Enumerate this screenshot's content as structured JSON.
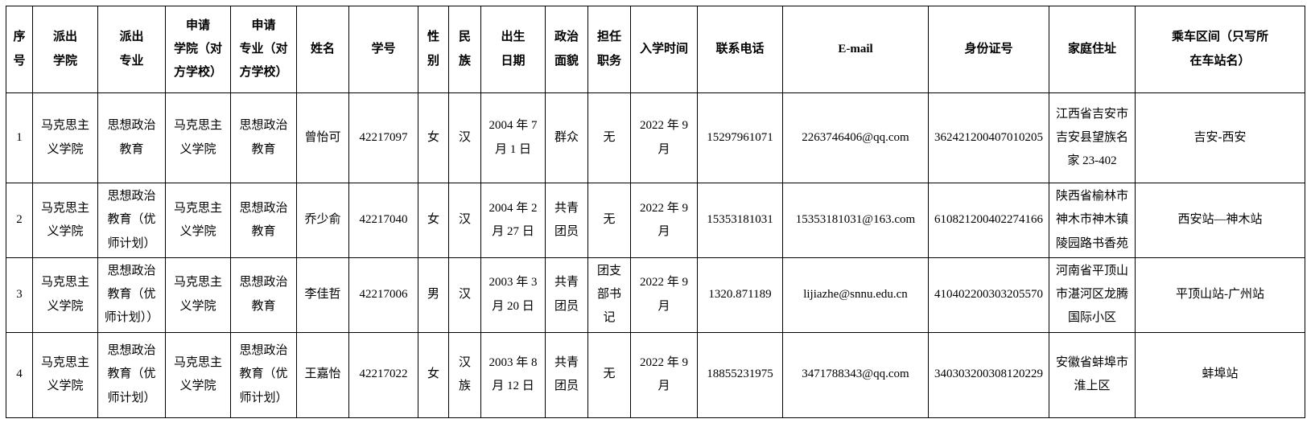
{
  "table": {
    "headers": [
      "序\n号",
      "派出\n学院",
      "派出\n专业",
      "申请\n学院（对\n方学校）",
      "申请\n专业（对\n方学校）",
      "姓名",
      "学号",
      "性\n别",
      "民\n族",
      "出生\n日期",
      "政治\n面貌",
      "担任\n职务",
      "入学时间",
      "联系电话",
      "E-mail",
      "身份证号",
      "家庭住址",
      "乘车区间（只写所\n在车站名）"
    ],
    "rows": [
      [
        "1",
        "马克思主义学院",
        "思想政治教育",
        "马克思主义学院",
        "思想政治教育",
        "曾怡可",
        "42217097",
        "女",
        "汉",
        "2004 年 7 月 1 日",
        "群众",
        "无",
        "2022 年 9 月",
        "15297961071",
        "2263746406@qq.com",
        "362421200407010205",
        "江西省吉安市吉安县望族名家 23-402",
        "吉安-西安"
      ],
      [
        "2",
        "马克思主义学院",
        "思想政治教育（优师计划）",
        "马克思主义学院",
        "思想政治教育",
        "乔少俞",
        "42217040",
        "女",
        "汉",
        "2004 年 2 月 27 日",
        "共青团员",
        "无",
        "2022 年 9 月",
        "15353181031",
        "15353181031@163.com",
        "610821200402274166",
        "陕西省榆林市神木市神木镇陵园路书香苑",
        "西安站—神木站"
      ],
      [
        "3",
        "马克思主义学院",
        "思想政治教育（优师计划））",
        "马克思主义学院",
        "思想政治教育",
        "李佳哲",
        "42217006",
        "男",
        "汉",
        "2003 年 3 月 20 日",
        "共青团员",
        "团支部书记",
        "2022 年 9 月",
        "1320.871189",
        "lijiazhe@snnu.edu.cn",
        "410402200303205570",
        "河南省平顶山市湛河区龙腾国际小区",
        "平顶山站-广州站"
      ],
      [
        "4",
        "马克思主义学院",
        "思想政治教育（优师计划）",
        "马克思主义学院",
        "思想政治教育（优师计划）",
        "王嘉怡",
        "42217022",
        "女",
        "汉族",
        "2003 年 8 月 12 日",
        "共青团员",
        "无",
        "2022 年 9 月",
        "18855231975",
        "3471788343@qq.com",
        "340303200308120229",
        "安徽省蚌埠市淮上区",
        "蚌埠站"
      ]
    ]
  }
}
